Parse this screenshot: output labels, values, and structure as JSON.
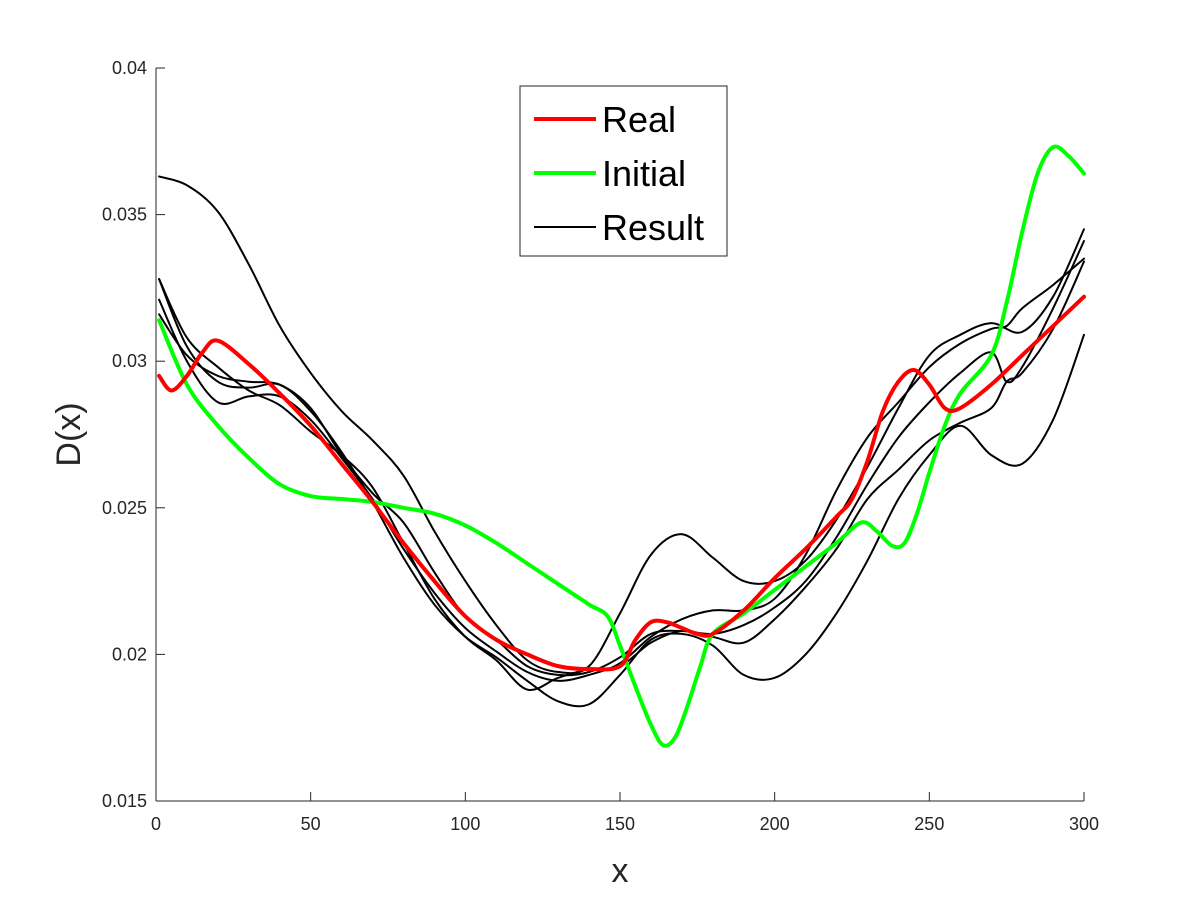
{
  "chart_data": {
    "type": "line",
    "title": "",
    "xlabel": "x",
    "ylabel": "D(x)",
    "xlim": [
      0,
      300
    ],
    "ylim": [
      0.015,
      0.04
    ],
    "xticks": [
      0,
      50,
      100,
      150,
      200,
      250,
      300
    ],
    "xtick_labels": [
      "0",
      "50",
      "100",
      "150",
      "200",
      "250",
      "300"
    ],
    "yticks": [
      0.015,
      0.02,
      0.025,
      0.03,
      0.035,
      0.04
    ],
    "ytick_labels": [
      "0.015",
      "0.02",
      "0.025",
      "0.03",
      "0.035",
      "0.04"
    ],
    "grid": false,
    "legend_position": "top-center",
    "legend": [
      {
        "name": "Real",
        "color": "#ff0000"
      },
      {
        "name": "Initial",
        "color": "#00ff00"
      },
      {
        "name": "Result",
        "color": "#000000"
      }
    ],
    "series": [
      {
        "name": "Real",
        "color": "#ff0000",
        "role": "real",
        "x": [
          1,
          5,
          10,
          15,
          20,
          30,
          40,
          50,
          60,
          70,
          80,
          90,
          100,
          110,
          120,
          130,
          140,
          150,
          155,
          160,
          165,
          170,
          175,
          180,
          190,
          200,
          210,
          220,
          225,
          230,
          235,
          240,
          245,
          250,
          255,
          260,
          270,
          280,
          290,
          300
        ],
        "y": [
          0.0295,
          0.029,
          0.0295,
          0.0303,
          0.0307,
          0.0299,
          0.0289,
          0.0278,
          0.0265,
          0.0252,
          0.0238,
          0.0225,
          0.0213,
          0.0205,
          0.02,
          0.0196,
          0.0195,
          0.0196,
          0.0205,
          0.0211,
          0.0211,
          0.0209,
          0.0207,
          0.0207,
          0.0215,
          0.0226,
          0.0236,
          0.0247,
          0.0253,
          0.0266,
          0.0283,
          0.0293,
          0.0297,
          0.0292,
          0.0284,
          0.0284,
          0.0292,
          0.0302,
          0.0312,
          0.0322
        ]
      },
      {
        "name": "Initial",
        "color": "#00ff00",
        "role": "initial",
        "x": [
          1,
          10,
          20,
          30,
          40,
          50,
          60,
          70,
          80,
          90,
          100,
          110,
          120,
          130,
          140,
          146,
          150,
          155,
          160,
          164,
          168,
          172,
          176,
          180,
          190,
          200,
          210,
          220,
          228,
          233,
          238,
          242,
          246,
          250,
          255,
          260,
          270,
          275,
          280,
          285,
          290,
          295,
          300
        ],
        "y": [
          0.0314,
          0.0292,
          0.0278,
          0.0267,
          0.0258,
          0.0254,
          0.0253,
          0.0252,
          0.025,
          0.0248,
          0.0244,
          0.0238,
          0.0231,
          0.0224,
          0.0217,
          0.0213,
          0.0203,
          0.0189,
          0.0176,
          0.0169,
          0.0172,
          0.0183,
          0.0196,
          0.0207,
          0.0214,
          0.0222,
          0.023,
          0.0238,
          0.0245,
          0.0242,
          0.0237,
          0.0238,
          0.0248,
          0.0262,
          0.0278,
          0.0289,
          0.0302,
          0.032,
          0.0344,
          0.0364,
          0.0373,
          0.037,
          0.0364
        ]
      },
      {
        "name": "Result",
        "color": "#000000",
        "role": "result",
        "x": [
          1,
          10,
          20,
          30,
          40,
          50,
          60,
          70,
          80,
          90,
          100,
          110,
          120,
          130,
          140,
          150,
          160,
          170,
          180,
          190,
          200,
          210,
          220,
          230,
          240,
          250,
          260,
          270,
          280,
          290,
          300
        ],
        "y": [
          0.0363,
          0.036,
          0.0351,
          0.0333,
          0.0312,
          0.0296,
          0.0283,
          0.0273,
          0.0261,
          0.0242,
          0.0225,
          0.021,
          0.0198,
          0.0194,
          0.0196,
          0.0214,
          0.0234,
          0.0241,
          0.0233,
          0.0225,
          0.0225,
          0.0232,
          0.0246,
          0.0264,
          0.0284,
          0.0302,
          0.0309,
          0.0313,
          0.031,
          0.0322,
          0.0345
        ]
      },
      {
        "name": "",
        "color": "#000000",
        "role": "result",
        "x": [
          1,
          10,
          20,
          30,
          40,
          50,
          60,
          70,
          80,
          90,
          100,
          110,
          120,
          130,
          140,
          150,
          160,
          170,
          180,
          190,
          200,
          210,
          220,
          230,
          240,
          250,
          260,
          270,
          280,
          290,
          300
        ],
        "y": [
          0.0328,
          0.0305,
          0.0293,
          0.0291,
          0.0292,
          0.0283,
          0.0269,
          0.0252,
          0.0233,
          0.0217,
          0.0206,
          0.0199,
          0.0191,
          0.0184,
          0.0183,
          0.0193,
          0.0205,
          0.0207,
          0.0203,
          0.0193,
          0.0192,
          0.02,
          0.0214,
          0.0232,
          0.0253,
          0.0268,
          0.0278,
          0.0268,
          0.0265,
          0.028,
          0.0309
        ]
      },
      {
        "name": "",
        "color": "#000000",
        "role": "result",
        "x": [
          1,
          10,
          20,
          30,
          40,
          50,
          60,
          70,
          80,
          90,
          100,
          110,
          120,
          130,
          140,
          150,
          160,
          170,
          180,
          190,
          200,
          210,
          220,
          230,
          240,
          250,
          260,
          270,
          275,
          280,
          290,
          300
        ],
        "y": [
          0.0321,
          0.03,
          0.0286,
          0.0288,
          0.0288,
          0.028,
          0.0267,
          0.0253,
          0.0236,
          0.0221,
          0.0209,
          0.0201,
          0.0194,
          0.0191,
          0.0193,
          0.0197,
          0.0206,
          0.0212,
          0.0215,
          0.0215,
          0.0219,
          0.0234,
          0.0256,
          0.0274,
          0.0286,
          0.0298,
          0.0306,
          0.0311,
          0.0312,
          0.0318,
          0.0326,
          0.0335
        ]
      },
      {
        "name": "",
        "color": "#000000",
        "role": "result",
        "x": [
          1,
          10,
          20,
          30,
          40,
          50,
          60,
          70,
          80,
          90,
          100,
          110,
          120,
          130,
          140,
          150,
          160,
          170,
          180,
          190,
          200,
          210,
          220,
          230,
          240,
          250,
          260,
          270,
          275,
          280,
          290,
          300
        ],
        "y": [
          0.0316,
          0.0302,
          0.0295,
          0.0293,
          0.0292,
          0.0284,
          0.0268,
          0.0255,
          0.0245,
          0.0228,
          0.0213,
          0.0205,
          0.0196,
          0.0193,
          0.0194,
          0.0199,
          0.0207,
          0.0208,
          0.0207,
          0.021,
          0.0216,
          0.0225,
          0.024,
          0.0258,
          0.0274,
          0.0286,
          0.0296,
          0.0303,
          0.0293,
          0.0298,
          0.0318,
          0.0341
        ]
      },
      {
        "name": "",
        "color": "#000000",
        "role": "result",
        "x": [
          1,
          10,
          20,
          30,
          40,
          50,
          60,
          70,
          80,
          90,
          100,
          110,
          120,
          130,
          140,
          150,
          160,
          170,
          180,
          190,
          200,
          210,
          220,
          230,
          240,
          250,
          260,
          270,
          275,
          280,
          290,
          300
        ],
        "y": [
          0.0328,
          0.0308,
          0.0298,
          0.029,
          0.0285,
          0.0276,
          0.0268,
          0.0257,
          0.0238,
          0.0219,
          0.0206,
          0.0198,
          0.0188,
          0.0192,
          0.0195,
          0.0196,
          0.0204,
          0.0208,
          0.0206,
          0.0204,
          0.0212,
          0.0223,
          0.0236,
          0.0253,
          0.0263,
          0.0273,
          0.0279,
          0.0284,
          0.0293,
          0.0296,
          0.0311,
          0.0334
        ]
      }
    ]
  }
}
